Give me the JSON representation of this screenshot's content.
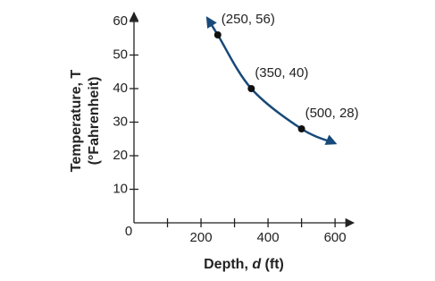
{
  "chart_data": {
    "type": "line",
    "xlabel": [
      "Depth, ",
      "d",
      " (ft)"
    ],
    "ylabel": [
      "Temperature, T",
      "(°Fahrenheit)"
    ],
    "origin_label": "0",
    "xlim": [
      0,
      653
    ],
    "ylim": [
      0,
      61.6
    ],
    "xticks": [
      200,
      400,
      600
    ],
    "x_minor_ticks": [
      100,
      300,
      500
    ],
    "yticks": [
      10,
      20,
      30,
      40,
      50,
      60
    ],
    "color": "#17497a",
    "curve": {
      "x": [
        219,
        250,
        350,
        500,
        600
      ],
      "y": [
        61,
        56,
        40,
        28,
        23.7
      ]
    },
    "points": {
      "x": [
        250,
        350,
        500
      ],
      "y": [
        56,
        40,
        28
      ],
      "labels": [
        "(250, 56)",
        "(350, 40)",
        "(500, 28)"
      ]
    }
  }
}
